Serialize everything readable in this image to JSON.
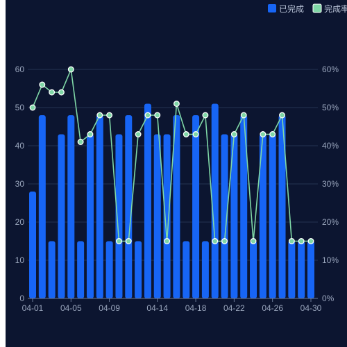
{
  "chart_data": {
    "type": "bar+line",
    "categories": [
      "04-01",
      "04-02",
      "04-03",
      "04-04",
      "04-05",
      "04-06",
      "04-07",
      "04-08",
      "04-09",
      "04-10",
      "04-11",
      "04-12",
      "04-13",
      "04-14",
      "04-15",
      "04-16",
      "04-17",
      "04-18",
      "04-19",
      "04-20",
      "04-21",
      "04-22",
      "04-23",
      "04-24",
      "04-25",
      "04-26",
      "04-27",
      "04-28",
      "04-29",
      "04-30"
    ],
    "x_tick_labels": [
      "04-01",
      "04-05",
      "04-09",
      "04-14",
      "04-18",
      "04-22",
      "04-26",
      "04-30"
    ],
    "series": [
      {
        "name": "已完成",
        "type": "bar",
        "axis": "left",
        "color": "#1765f5",
        "values": [
          28,
          48,
          15,
          43,
          48,
          15,
          43,
          48,
          15,
          43,
          48,
          15,
          51,
          43,
          43,
          48,
          15,
          48,
          15,
          51,
          43,
          43,
          48,
          15,
          43,
          43,
          48,
          15,
          15,
          15
        ]
      },
      {
        "name": "完成率",
        "type": "line",
        "axis": "right",
        "color": "#7fd7a6",
        "values": [
          50,
          56,
          54,
          54,
          60,
          41,
          43,
          48,
          48,
          15,
          15,
          43,
          48,
          48,
          15,
          51,
          43,
          43,
          48,
          15,
          15,
          43,
          48,
          15,
          43,
          43,
          48,
          15,
          15,
          15
        ]
      }
    ],
    "y_left": {
      "min": 0,
      "max": 60,
      "ticks": [
        0,
        10,
        20,
        30,
        40,
        50,
        60
      ]
    },
    "y_right": {
      "min": 0,
      "max": 60,
      "ticks": [
        "0%",
        "10%",
        "20%",
        "30%",
        "40%",
        "50%",
        "60%"
      ]
    },
    "grid": true,
    "legend_position": "top-right",
    "legend": [
      "已完成",
      "完成率"
    ]
  }
}
